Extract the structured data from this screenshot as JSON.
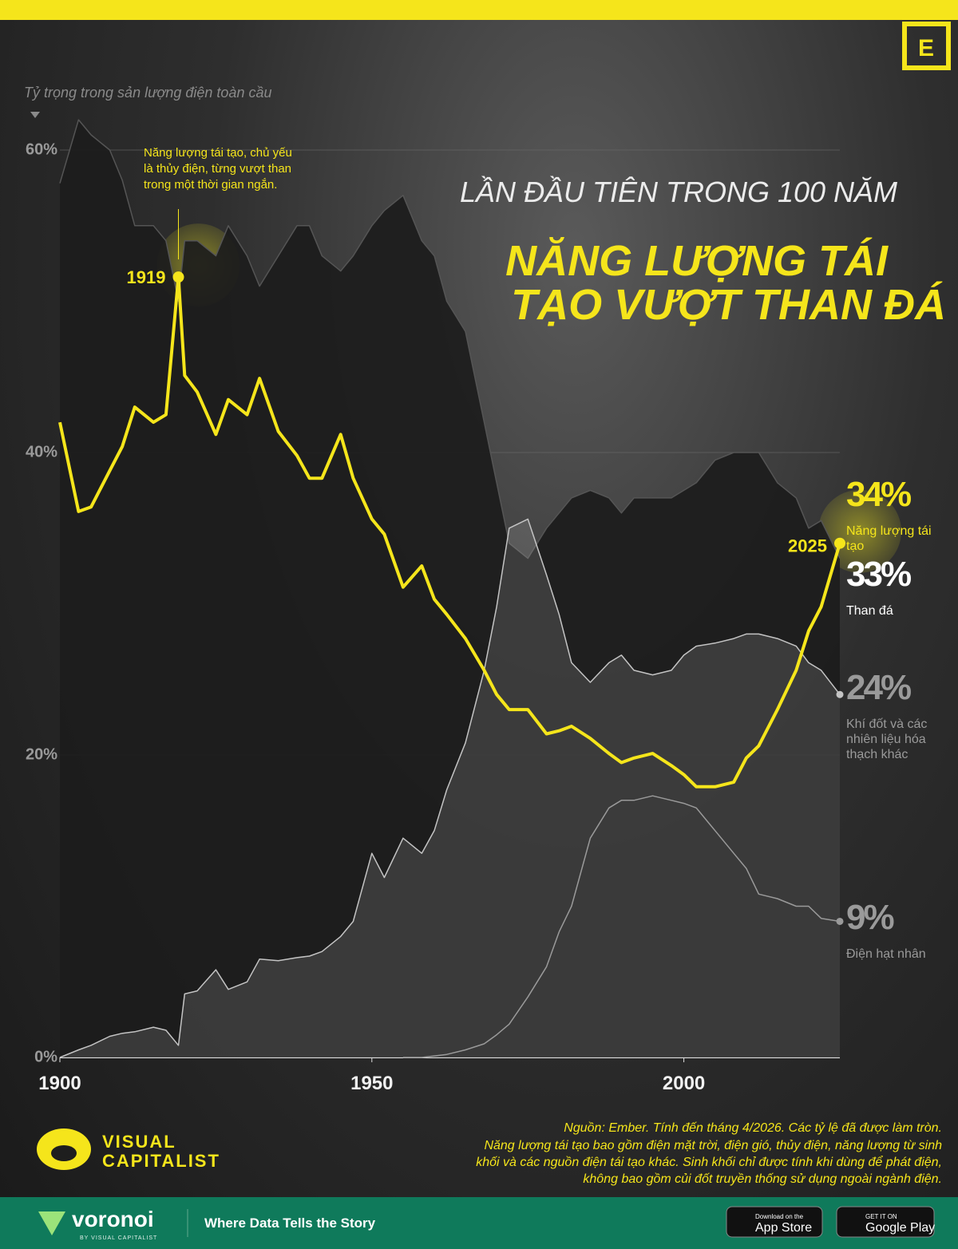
{
  "chart_data": {
    "type": "line",
    "title": "LẦN ĐẦU TIÊN TRONG 100 NĂM",
    "title_lines": [
      "NĂNG LƯỢNG TÁI",
      "TẠO VƯỢT THAN ĐÁ"
    ],
    "y_label": "Tỷ trọng trong sản lượng điện toàn cầu",
    "annotation": [
      "Năng lượng tái tạo, chủ yếu",
      "là thủy điện, từng vượt than",
      "trong một thời gian ngắn."
    ],
    "x": [
      1900,
      1903,
      1905,
      1908,
      1910,
      1912,
      1915,
      1917,
      1919,
      1920,
      1922,
      1925,
      1927,
      1930,
      1932,
      1935,
      1938,
      1940,
      1942,
      1945,
      1947,
      1950,
      1952,
      1955,
      1958,
      1960,
      1962,
      1965,
      1968,
      1970,
      1972,
      1975,
      1978,
      1980,
      1982,
      1985,
      1988,
      1990,
      1992,
      1995,
      1998,
      2000,
      2002,
      2005,
      2008,
      2010,
      2012,
      2015,
      2018,
      2020,
      2022,
      2025
    ],
    "xlim": [
      1900,
      2025
    ],
    "xticks": [
      1900,
      1950,
      2000
    ],
    "ylim": [
      0,
      65
    ],
    "yticks": [
      {
        "value": 0,
        "label": "0%"
      },
      {
        "value": 20,
        "label": "20%"
      },
      {
        "value": 40,
        "label": "40%"
      },
      {
        "value": 60,
        "label": "60%"
      }
    ],
    "grid": true,
    "series": [
      {
        "name": "Than đá",
        "color": "#1c1c1c",
        "style": "area",
        "values": [
          57.8,
          62,
          61,
          60,
          58,
          55,
          55,
          54,
          50,
          54,
          54,
          53,
          55,
          53,
          51,
          53,
          55,
          55,
          53,
          52,
          53,
          55,
          56,
          57,
          54,
          53,
          50,
          48,
          42,
          38,
          34,
          33,
          35,
          36,
          37,
          37.5,
          37,
          36,
          37,
          37,
          37,
          37.5,
          38,
          39.5,
          40,
          40,
          40,
          38,
          37,
          35,
          35.5,
          33
        ],
        "value_labels": [
          null,
          null,
          null,
          null,
          null,
          null,
          null,
          null,
          null,
          null,
          null,
          null,
          null,
          null,
          null,
          null,
          null,
          null,
          null,
          null,
          null,
          null,
          null,
          null,
          null,
          null,
          null,
          null,
          null,
          null,
          null,
          null,
          null,
          null,
          null,
          null,
          null,
          null,
          null,
          null,
          null,
          null,
          null,
          null,
          null,
          null,
          null,
          null,
          null,
          null,
          null,
          "33%"
        ]
      },
      {
        "name": "Khí đốt và các nhiên liệu hóa thạch khác",
        "color": "#c4c4c4",
        "style": "area",
        "values": [
          0,
          0.5,
          0.8,
          1.4,
          1.6,
          1.7,
          2,
          1.8,
          0.8,
          4.2,
          4.4,
          5.8,
          4.5,
          5,
          6.5,
          6.4,
          6.6,
          6.7,
          7,
          8,
          9,
          13.5,
          11.9,
          14.5,
          13.5,
          15,
          17.7,
          20.8,
          25.6,
          29.8,
          35,
          35.6,
          31.9,
          29.3,
          26.1,
          24.8,
          26.1,
          26.6,
          25.6,
          25.3,
          25.6,
          26.6,
          27.2,
          27.4,
          27.7,
          28,
          28,
          27.7,
          27.2,
          26.1,
          25.6,
          24
        ],
        "value_labels": [
          null,
          null,
          null,
          null,
          null,
          null,
          null,
          null,
          null,
          null,
          null,
          null,
          null,
          null,
          null,
          null,
          null,
          null,
          null,
          null,
          null,
          null,
          null,
          null,
          null,
          null,
          null,
          null,
          null,
          null,
          null,
          null,
          null,
          null,
          null,
          null,
          null,
          null,
          null,
          null,
          null,
          null,
          null,
          null,
          null,
          null,
          null,
          null,
          null,
          null,
          null,
          "24%"
        ]
      },
      {
        "name": "Điện hạt nhân",
        "color": "#9a9a9a",
        "style": "line",
        "values": [
          null,
          null,
          null,
          null,
          null,
          null,
          null,
          null,
          null,
          null,
          null,
          null,
          null,
          null,
          null,
          null,
          null,
          null,
          null,
          null,
          null,
          null,
          null,
          0,
          0,
          0.1,
          0.2,
          0.5,
          0.9,
          1.5,
          2.2,
          4,
          6,
          8.3,
          10,
          14.5,
          16.5,
          17,
          17,
          17.3,
          17,
          16.8,
          16.5,
          15,
          13.5,
          12.5,
          10.8,
          10.5,
          10,
          10,
          9.2,
          9
        ],
        "value_labels": [
          null,
          null,
          null,
          null,
          null,
          null,
          null,
          null,
          null,
          null,
          null,
          null,
          null,
          null,
          null,
          null,
          null,
          null,
          null,
          null,
          null,
          null,
          null,
          null,
          null,
          null,
          null,
          null,
          null,
          null,
          null,
          null,
          null,
          null,
          null,
          null,
          null,
          null,
          null,
          null,
          null,
          null,
          null,
          null,
          null,
          null,
          null,
          null,
          null,
          null,
          null,
          "9%"
        ]
      },
      {
        "name": "Năng lượng tái tạo",
        "color": "#f5e51b",
        "style": "line",
        "values": [
          42,
          36.1,
          36.4,
          38.8,
          40.4,
          43,
          42,
          42.5,
          51.6,
          45.1,
          44,
          41.2,
          43.5,
          42.5,
          44.9,
          41.4,
          39.8,
          38.3,
          38.3,
          41.2,
          38.3,
          35.6,
          34.6,
          31.1,
          32.5,
          30.3,
          29.3,
          27.7,
          25.6,
          24,
          23,
          23,
          21.4,
          21.6,
          21.9,
          21.1,
          20.1,
          19.5,
          19.8,
          20.1,
          19.3,
          18.7,
          17.9,
          17.9,
          18.2,
          19.8,
          20.6,
          23,
          25.6,
          28.2,
          29.8,
          34
        ],
        "value_labels": [
          null,
          null,
          null,
          null,
          null,
          null,
          null,
          null,
          null,
          null,
          null,
          null,
          null,
          null,
          null,
          null,
          null,
          null,
          null,
          null,
          null,
          null,
          null,
          null,
          null,
          null,
          null,
          null,
          null,
          null,
          null,
          null,
          null,
          null,
          null,
          null,
          null,
          null,
          null,
          null,
          null,
          null,
          null,
          null,
          null,
          null,
          null,
          null,
          null,
          null,
          null,
          "34%"
        ]
      }
    ],
    "source": [
      "Nguồn: Ember. Tính đến tháng 4/2026. Các tỷ lệ đã được làm tròn.",
      "Năng lượng tái tạo bao gồm điện mặt trời, điện gió, thủy điện, năng lượng từ sinh",
      "khối và các nguồn điện tái tạo khác. Sinh khối chỉ được tính khi dùng để phát điện,",
      "không bao gồm củi đốt truyền thống sử dụng ngoài ngành điện."
    ]
  },
  "branding": {
    "corner_mark": "E",
    "logo_lines": [
      "VISUAL",
      "CAPITALIST"
    ],
    "footer_brand": "voronoi",
    "footer_by": "BY VISUAL CAPITALIST",
    "footer_tagline": "Where Data Tells the Story",
    "app_store": [
      "Download on the",
      "App Store"
    ],
    "google_play": [
      "GET IT ON",
      "Google Play"
    ]
  }
}
